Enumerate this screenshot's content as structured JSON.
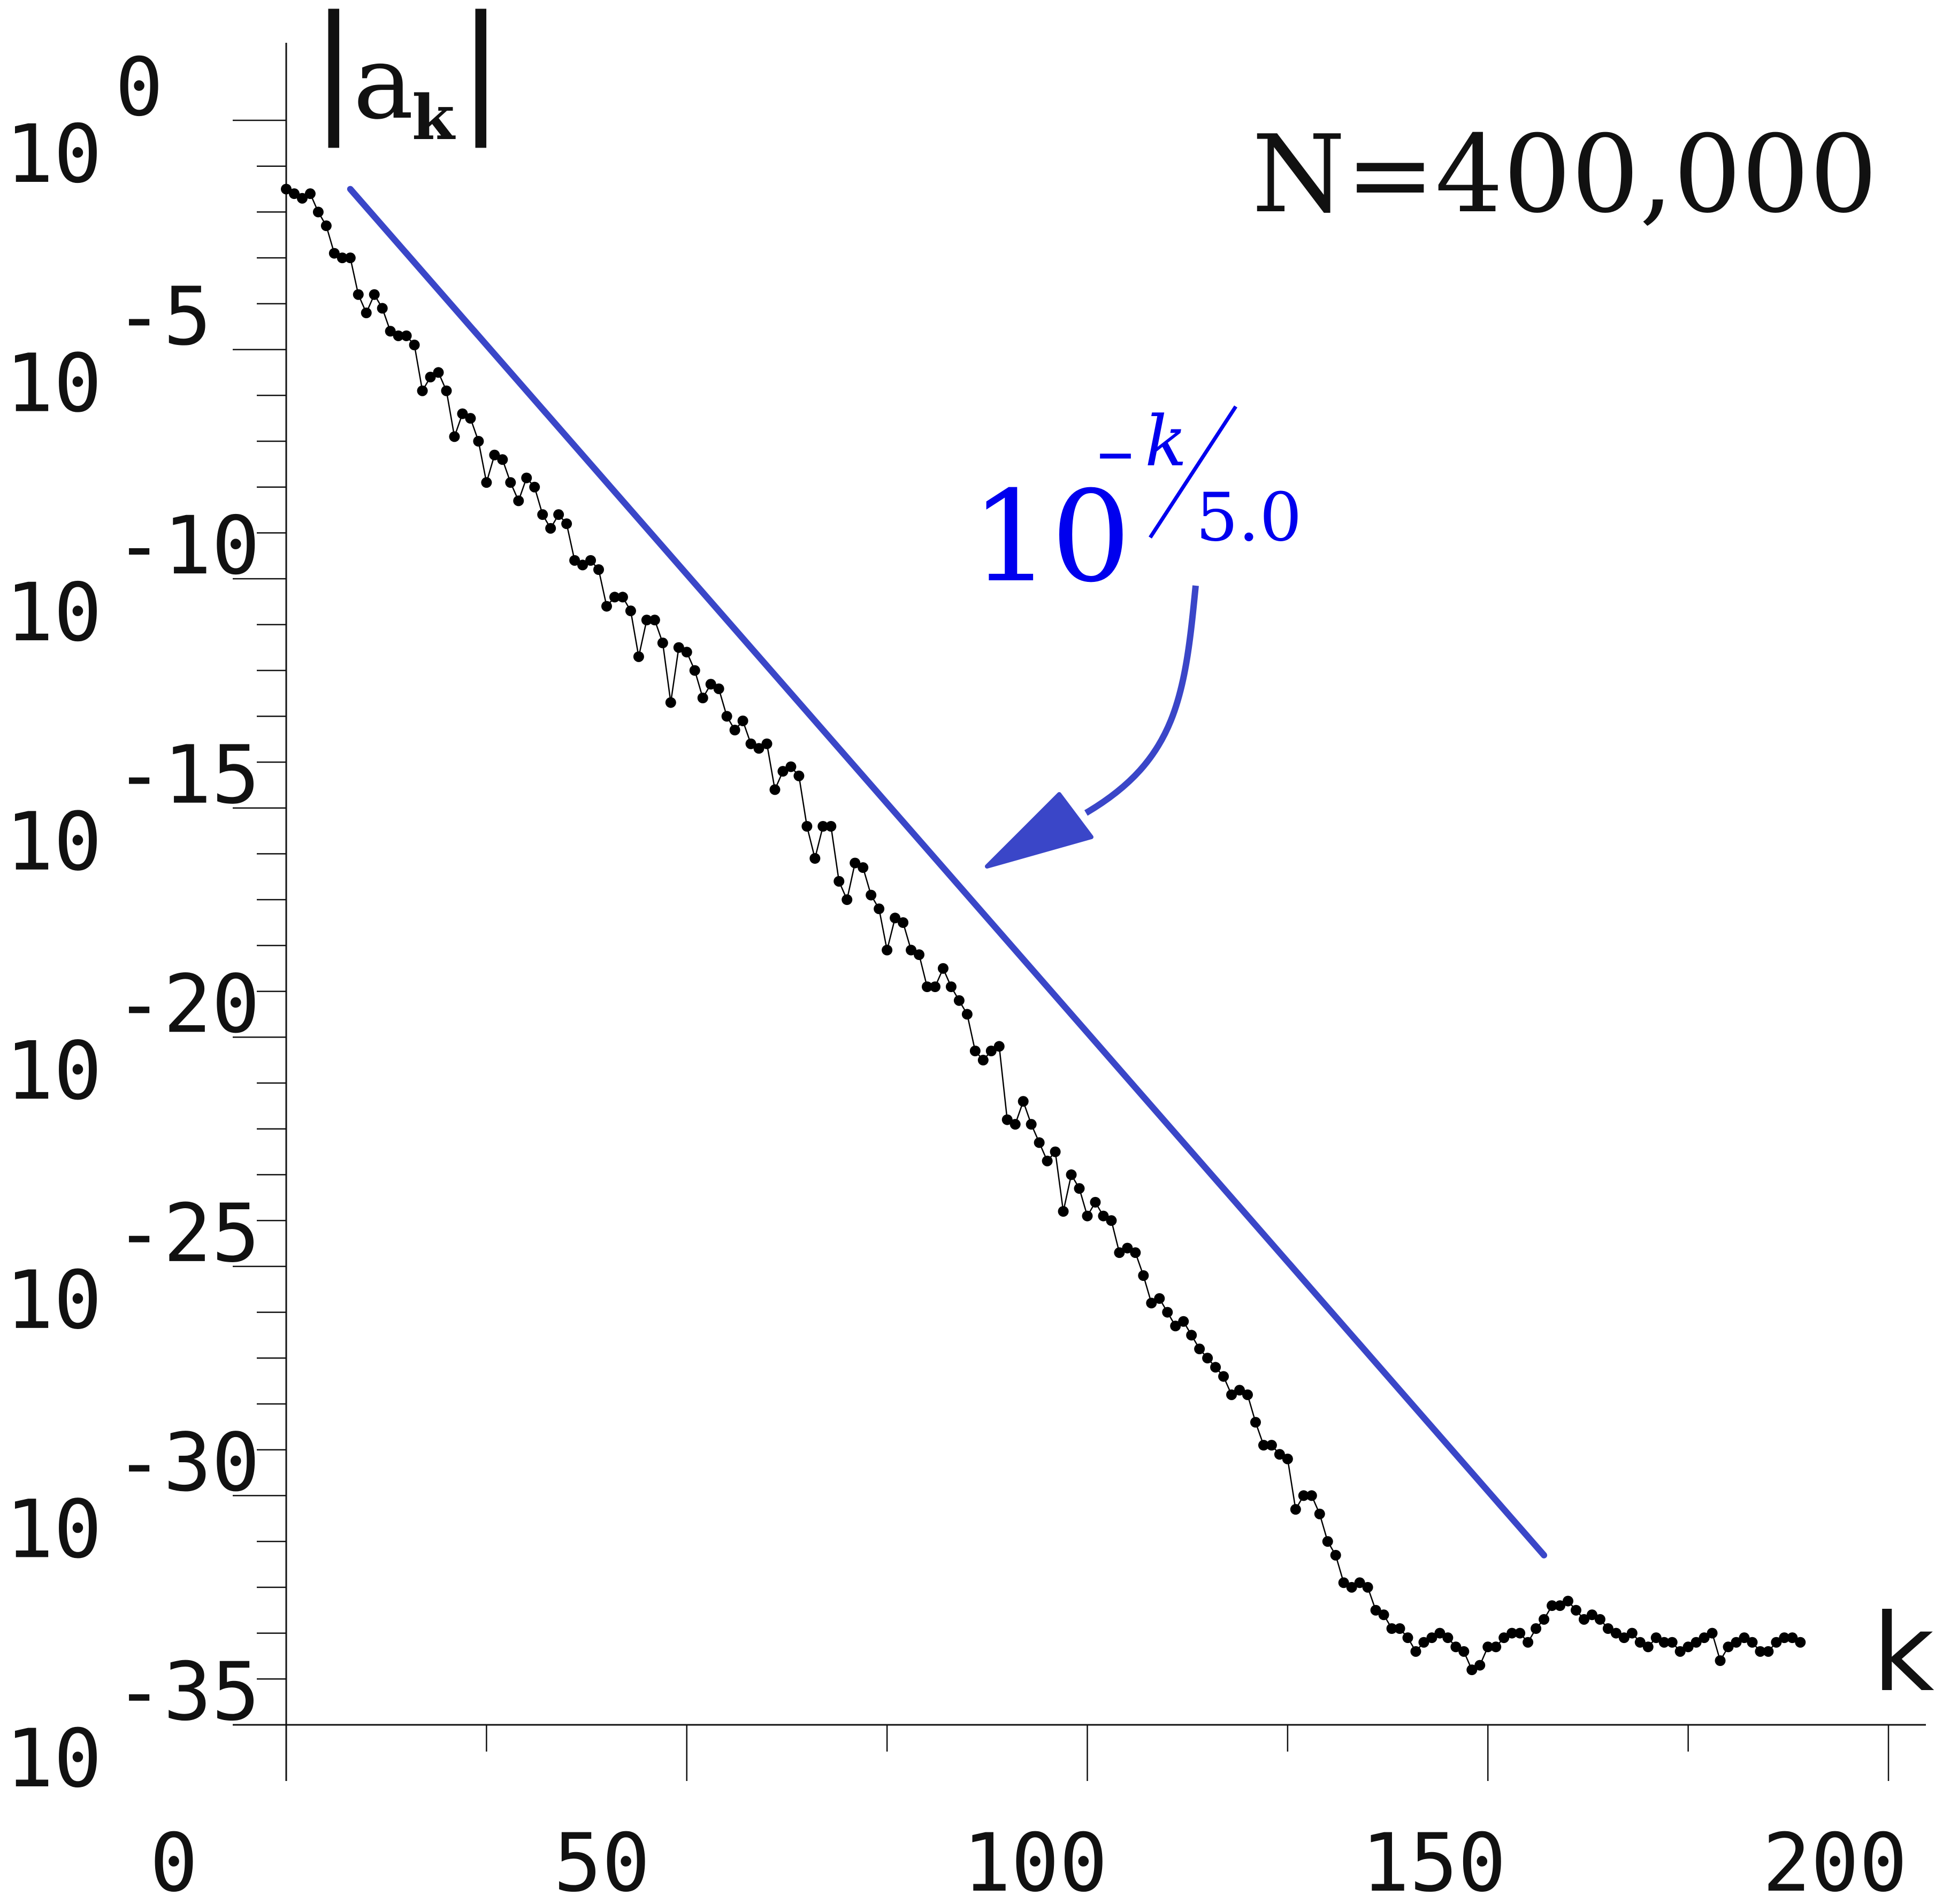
{
  "chart_data": {
    "type": "scatter",
    "title": "",
    "xlabel": "k",
    "ylabel": "|a_k|",
    "ylabel_parts": {
      "left_bar": "|",
      "base": "a",
      "subscript": "k",
      "right_bar": "|"
    },
    "y_scale": "log10",
    "xlim": [
      0,
      200
    ],
    "ylim": [
      1e-35,
      1.0
    ],
    "x_ticks": [
      0,
      50,
      100,
      150,
      200
    ],
    "x_tick_labels": [
      "0",
      "50",
      "100",
      "150",
      "200"
    ],
    "y_ticks_exponent": [
      0,
      -5,
      -10,
      -15,
      -20,
      -25,
      -30,
      -35
    ],
    "y_tick_base": "10",
    "y_tick_exponent_labels": [
      "0",
      "-5",
      "-10",
      "-15",
      "-20",
      "-25",
      "-30",
      "-35"
    ],
    "annotation_N": "N=400,000",
    "fit_label": {
      "base": "10",
      "minus": "–",
      "numerator": "k",
      "denominator": "5.0"
    },
    "fit_line": {
      "k_start": 8,
      "k_end": 157,
      "log10_start": -1.5,
      "log10_end": -31.3
    },
    "series": [
      {
        "values_log10": [
          -1.5,
          -1.6,
          -1.7,
          -1.6,
          -2.0,
          -2.3,
          -2.9,
          -3.0,
          -3.0,
          -3.8,
          -4.2,
          -3.8,
          -4.1,
          -4.6,
          -4.7,
          -4.7,
          -4.9,
          -5.9,
          -5.6,
          -5.5,
          -5.9,
          -6.9,
          -6.4,
          -6.5,
          -7.0,
          -7.9,
          -7.3,
          -7.4,
          -7.9,
          -8.3,
          -7.8,
          -8.0,
          -8.6,
          -8.9,
          -8.6,
          -8.8,
          -9.6,
          -9.7,
          -9.6,
          -9.8,
          -10.6,
          -10.4,
          -10.4,
          -10.7,
          -11.7,
          -10.9,
          -10.9,
          -11.4,
          -12.7,
          -11.5,
          -11.6,
          -12.0,
          -12.6,
          -12.3,
          -12.4,
          -13.0,
          -13.3,
          -13.1,
          -13.6,
          -13.7,
          -13.6,
          -14.6,
          -14.2,
          -14.1,
          -14.3,
          -15.4,
          -16.1,
          -15.4,
          -15.4,
          -16.6,
          -17.0,
          -16.2,
          -16.3,
          -16.9,
          -17.2,
          -18.1,
          -17.4,
          -17.5,
          -18.1,
          -18.2,
          -18.9,
          -18.9,
          -18.5,
          -18.9,
          -19.2,
          -19.5,
          -20.3,
          -20.5,
          -20.3,
          -20.2,
          -21.8,
          -21.9,
          -21.4,
          -21.9,
          -22.3,
          -22.7,
          -22.5,
          -23.8,
          -23.0,
          -23.3,
          -23.9,
          -23.6,
          -23.9,
          -24.0,
          -24.7,
          -24.6,
          -24.7,
          -25.2,
          -25.8,
          -25.7,
          -26.0,
          -26.3,
          -26.2,
          -26.5,
          -26.8,
          -27.0,
          -27.2,
          -27.4,
          -27.8,
          -27.7,
          -27.8,
          -28.4,
          -28.9,
          -28.9,
          -29.1,
          -29.2,
          -30.3,
          -30.0,
          -30.0,
          -30.4,
          -31.0,
          -31.3,
          -31.9,
          -32.0,
          -31.9,
          -32.0,
          -32.5,
          -32.6,
          -32.9,
          -32.9,
          -33.1,
          -33.4,
          -33.2,
          -33.1,
          -33.0,
          -33.1,
          -33.3,
          -33.4,
          -33.8,
          -33.7,
          -33.3,
          -33.3,
          -33.1,
          -33.0,
          -33.0,
          -33.2,
          -32.9,
          -32.7,
          -32.4,
          -32.4,
          -32.3,
          -32.5,
          -32.7,
          -32.6,
          -32.7,
          -32.9,
          -33.0,
          -33.1,
          -33.0,
          -33.2,
          -33.3,
          -33.1,
          -33.2,
          -33.2,
          -33.4,
          -33.3,
          -33.2,
          -33.1,
          -33.0,
          -33.6,
          -33.3,
          -33.2,
          -33.1,
          -33.2,
          -33.4,
          -33.4,
          -33.2,
          -33.1,
          -33.1,
          -33.2
        ],
        "k_start": 0
      }
    ],
    "colors": {
      "data": "#000000",
      "fit": "#3a46c8",
      "fit_label": "#0000ee",
      "axes": "#111111"
    }
  }
}
